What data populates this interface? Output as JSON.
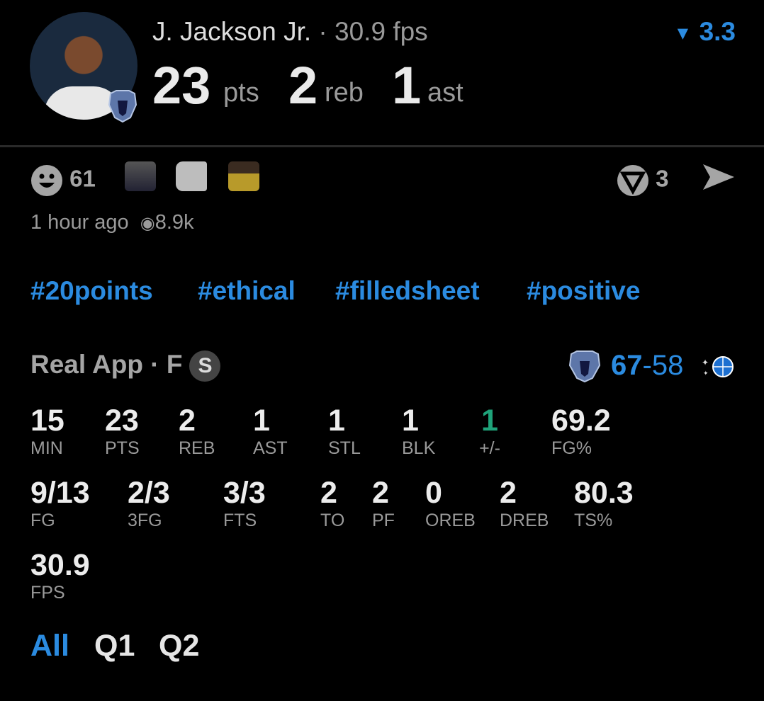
{
  "header": {
    "player_name": "J. Jackson Jr.",
    "fps_text": "· 30.9 fps",
    "pts": "23",
    "pts_unit": "pts",
    "reb": "2",
    "reb_unit": "reb",
    "ast": "1",
    "ast_unit": "ast",
    "rating": "3.3",
    "rating_icon": "rating-arrow-icon"
  },
  "reactions": {
    "smile_count": "61",
    "vote_count": "3"
  },
  "meta": {
    "time": "1 hour ago",
    "views": "8.9k"
  },
  "hashtags": [
    "#20points",
    "#ethical",
    "#filledsheet",
    "#positive"
  ],
  "game": {
    "source": "Real App · F",
    "badge": "S",
    "home_score": "67",
    "away_score": "-58"
  },
  "stats": [
    {
      "v": "15",
      "l": "MIN"
    },
    {
      "v": "23",
      "l": "PTS"
    },
    {
      "v": "2",
      "l": "REB"
    },
    {
      "v": "1",
      "l": "AST"
    },
    {
      "v": "1",
      "l": "STL"
    },
    {
      "v": "1",
      "l": "BLK"
    },
    {
      "v": "1",
      "l": "+/-"
    },
    {
      "v": "69.2",
      "l": "FG%"
    },
    {
      "v": "9/13",
      "l": "FG"
    },
    {
      "v": "2/3",
      "l": "3FG"
    },
    {
      "v": "3/3",
      "l": "FTS"
    },
    {
      "v": "2",
      "l": "TO"
    },
    {
      "v": "2",
      "l": "PF"
    },
    {
      "v": "0",
      "l": "OREB"
    },
    {
      "v": "2",
      "l": "DREB"
    },
    {
      "v": "80.3",
      "l": "TS%"
    },
    {
      "v": "30.9",
      "l": "FPS"
    }
  ],
  "colors": {
    "accent": "#2b8be0",
    "positive": "#1fa37a"
  },
  "tabs": [
    "All",
    "Q1",
    "Q2"
  ]
}
